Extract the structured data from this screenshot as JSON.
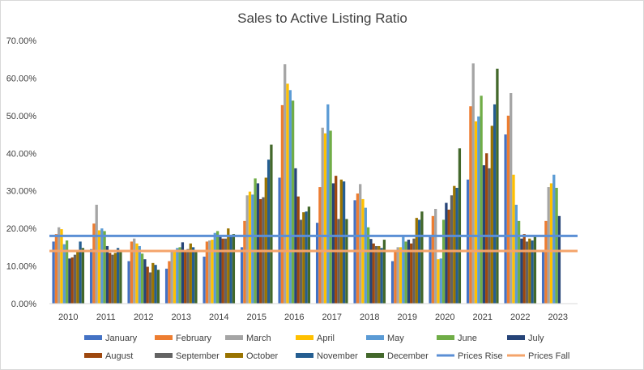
{
  "chart_data": {
    "type": "bar",
    "title": "Sales to Active Listing Ratio",
    "categories": [
      "2010",
      "2011",
      "2012",
      "2013",
      "2014",
      "2015",
      "2016",
      "2017",
      "2018",
      "2019",
      "2020",
      "2021",
      "2022",
      "2023"
    ],
    "y_ticks": [
      "0.00%",
      "10.00%",
      "20.00%",
      "30.00%",
      "40.00%",
      "50.00%",
      "60.00%",
      "70.00%"
    ],
    "ylim": [
      0,
      70
    ],
    "grid": false,
    "legend_position": "bottom",
    "series": [
      {
        "name": "January",
        "color": "#4472c4",
        "values": [
          16.5,
          14.5,
          11.3,
          9.3,
          12.5,
          15.0,
          33.5,
          21.5,
          27.5,
          11.3,
          18.2,
          33.0,
          45.0,
          14.0
        ]
      },
      {
        "name": "February",
        "color": "#ed7d31",
        "values": [
          18.5,
          21.3,
          16.5,
          11.3,
          16.5,
          22.0,
          52.8,
          31.0,
          29.3,
          14.0,
          23.3,
          52.5,
          50.0,
          22.0
        ]
      },
      {
        "name": "March",
        "color": "#a5a5a5",
        "values": [
          20.3,
          26.3,
          17.3,
          14.3,
          16.8,
          28.8,
          63.7,
          46.8,
          31.8,
          15.0,
          25.2,
          63.9,
          56.0,
          31.0
        ]
      },
      {
        "name": "April",
        "color": "#ffc000",
        "values": [
          19.8,
          19.5,
          16.0,
          14.3,
          17.0,
          29.8,
          58.5,
          45.3,
          27.8,
          15.0,
          11.8,
          48.5,
          34.3,
          32.0
        ]
      },
      {
        "name": "May",
        "color": "#5b9bd5",
        "values": [
          15.8,
          20.0,
          15.3,
          14.8,
          18.8,
          29.0,
          56.8,
          53.0,
          25.5,
          17.8,
          12.0,
          49.8,
          26.3,
          34.3
        ]
      },
      {
        "name": "June",
        "color": "#70ad47",
        "values": [
          16.8,
          19.3,
          13.3,
          15.0,
          19.3,
          33.3,
          54.0,
          46.0,
          20.3,
          16.5,
          22.3,
          55.3,
          22.0,
          30.8
        ]
      },
      {
        "name": "July",
        "color": "#264478",
        "values": [
          12.0,
          15.3,
          11.8,
          16.3,
          18.3,
          32.0,
          36.0,
          32.0,
          17.2,
          17.0,
          26.8,
          36.8,
          17.3,
          23.3
        ]
      },
      {
        "name": "August",
        "color": "#9e480e",
        "values": [
          12.3,
          13.5,
          9.8,
          14.0,
          17.3,
          27.8,
          28.5,
          34.0,
          16.0,
          16.0,
          25.0,
          40.0,
          18.5,
          0
        ]
      },
      {
        "name": "September",
        "color": "#636363",
        "values": [
          13.0,
          13.0,
          8.3,
          14.5,
          17.3,
          28.3,
          22.3,
          22.5,
          15.3,
          17.3,
          28.8,
          36.0,
          16.5,
          0
        ]
      },
      {
        "name": "October",
        "color": "#997300",
        "values": [
          14.3,
          13.5,
          10.8,
          16.0,
          20.0,
          33.5,
          24.3,
          33.0,
          15.3,
          22.8,
          31.3,
          47.3,
          17.3,
          0
        ]
      },
      {
        "name": "November",
        "color": "#255e91",
        "values": [
          16.5,
          14.8,
          10.3,
          15.0,
          17.8,
          38.3,
          24.5,
          32.5,
          14.8,
          22.3,
          30.8,
          53.0,
          16.8,
          0
        ]
      },
      {
        "name": "December",
        "color": "#43682b",
        "values": [
          14.8,
          13.8,
          9.0,
          14.3,
          18.5,
          42.3,
          25.8,
          22.5,
          17.0,
          24.5,
          41.3,
          62.5,
          17.8,
          0
        ]
      }
    ],
    "lines": [
      {
        "name": "Prices Rise",
        "color": "#5b8fd5",
        "value": 18.0
      },
      {
        "name": "Prices Fall",
        "color": "#f4a46b",
        "value": 14.0
      }
    ]
  }
}
